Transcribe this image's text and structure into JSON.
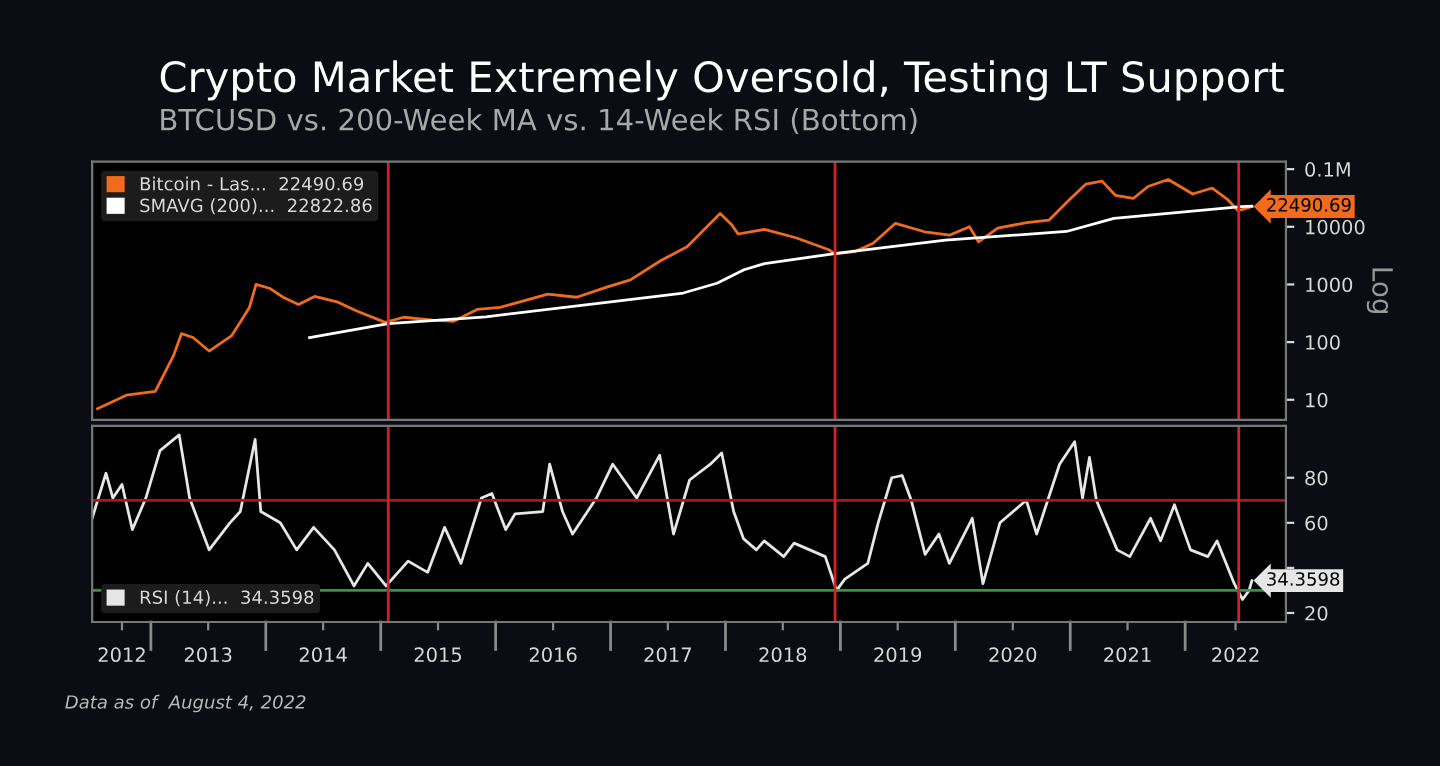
{
  "chart_data": [
    {
      "type": "line",
      "title": "Crypto Market Extremely Oversold, Testing LT Support",
      "subtitle": "BTCUSD vs. 200-Week MA vs. 14-Week RSI (Bottom)",
      "ylabel": "Log",
      "log": "y",
      "legend": "top left",
      "tick_labels": "y",
      "xlim": [
        "2012-06-28",
        "2022-11-17"
      ],
      "ylim": [
        4.5,
        135000
      ],
      "yticks": [
        10,
        100,
        1000,
        10000,
        {
          "value": 100000,
          "label": "0.1M"
        }
      ],
      "series": [
        {
          "name": "Bitcoin - Las...  22490.69",
          "color": "#f26b1d",
          "x": [
            "2012-07-15",
            "2012-10-15",
            "2013-01-15",
            "2013-03-15",
            "2013-04-08",
            "2013-05-15",
            "2013-07-05",
            "2013-09-15",
            "2013-11-10",
            "2013-12-01",
            "2014-01-15",
            "2014-02-25",
            "2014-04-15",
            "2014-06-05",
            "2014-08-15",
            "2014-10-15",
            "2015-01-15",
            "2015-03-15",
            "2015-06-15",
            "2015-08-20",
            "2015-11-05",
            "2016-01-15",
            "2016-06-15",
            "2016-09-15",
            "2016-12-20",
            "2017-03-05",
            "2017-06-10",
            "2017-09-01",
            "2017-12-15",
            "2018-01-20",
            "2018-02-10",
            "2018-05-05",
            "2018-08-15",
            "2018-11-25",
            "2018-12-15",
            "2019-02-15",
            "2019-04-15",
            "2019-06-25",
            "2019-09-25",
            "2019-12-15",
            "2020-02-15",
            "2020-03-15",
            "2020-05-15",
            "2020-08-15",
            "2020-10-25",
            "2020-12-25",
            "2021-02-20",
            "2021-04-12",
            "2021-05-25",
            "2021-07-20",
            "2021-09-05",
            "2021-11-08",
            "2022-01-25",
            "2022-03-28",
            "2022-05-15",
            "2022-06-18",
            "2022-08-01"
          ],
          "values": [
            7,
            12,
            14,
            60,
            140,
            120,
            70,
            130,
            400,
            1000,
            850,
            600,
            450,
            620,
            500,
            350,
            220,
            270,
            240,
            230,
            370,
            400,
            680,
            600,
            900,
            1200,
            2600,
            4500,
            17000,
            11000,
            7500,
            9000,
            6400,
            4000,
            3400,
            3700,
            5200,
            11500,
            8200,
            7200,
            10000,
            5500,
            9500,
            11800,
            13000,
            28000,
            55000,
            62000,
            35000,
            31000,
            50000,
            66000,
            37000,
            47000,
            30000,
            19000,
            22490.69
          ]
        },
        {
          "name": "SMAVG (200)...  22822.86",
          "color": "#ffffff",
          "x": [
            "2014-05-20",
            "2015-01-25",
            "2015-12-01",
            "2017-01-15",
            "2017-08-20",
            "2017-12-05",
            "2018-03-01",
            "2018-05-05",
            "2018-12-25",
            "2019-12-01",
            "2020-12-20",
            "2021-05-20",
            "2022-06-28",
            "2022-08-01"
          ],
          "values": [
            120,
            210,
            275,
            510,
            710,
            1050,
            1800,
            2300,
            3500,
            5900,
            8300,
            14000,
            22300,
            22822.86
          ]
        }
      ],
      "ref_lines": [
        {
          "axis": "x",
          "value": "2015-01-25",
          "color": "#d0202a"
        },
        {
          "axis": "x",
          "value": "2018-12-15",
          "color": "#d0202a"
        },
        {
          "axis": "x",
          "value": "2022-06-20",
          "color": "#d0202a"
        }
      ],
      "annotations": [
        {
          "text": "22490.69",
          "x": "2022-08-01",
          "y": 22490.69
        }
      ]
    },
    {
      "type": "line",
      "legend": "bottom left",
      "xlim": [
        "2012-06-28",
        "2022-11-17"
      ],
      "ylim": [
        16,
        103
      ],
      "yticks": [
        20,
        {
          "value": 40,
          "label": null
        },
        60,
        80
      ],
      "xticks": [
        {
          "value": "2012-10-01",
          "label": "2012"
        },
        {
          "value": "2013-07-02",
          "label": "2013"
        },
        {
          "value": "2014-07-02",
          "label": "2014"
        },
        {
          "value": "2015-07-02",
          "label": "2015"
        },
        {
          "value": "2016-07-02",
          "label": "2016"
        },
        {
          "value": "2017-07-02",
          "label": "2017"
        },
        {
          "value": "2018-07-02",
          "label": "2018"
        },
        {
          "value": "2019-07-02",
          "label": "2019"
        },
        {
          "value": "2020-07-02",
          "label": "2020"
        },
        {
          "value": "2021-07-02",
          "label": "2021"
        },
        {
          "value": "2022-06-10",
          "label": "2022"
        }
      ],
      "series": [
        {
          "name": "RSI (14)...  34.3598",
          "color": "#e6e6e6",
          "x": [
            "2012-06-28",
            "2012-08-11",
            "2012-09-02",
            "2012-10-01",
            "2012-11-03",
            "2012-12-16",
            "2013-01-30",
            "2013-04-01",
            "2013-05-04",
            "2013-07-05",
            "2013-09-09",
            "2013-10-12",
            "2013-11-28",
            "2013-12-16",
            "2014-02-16",
            "2014-04-09",
            "2014-06-02",
            "2014-08-07",
            "2014-10-08",
            "2014-11-21",
            "2015-01-18",
            "2015-03-29",
            "2015-05-30",
            "2015-07-23",
            "2015-09-13",
            "2015-11-17",
            "2015-12-20",
            "2016-02-02",
            "2016-03-03",
            "2016-05-30",
            "2016-06-21",
            "2016-08-01",
            "2016-09-02",
            "2016-11-17",
            "2017-01-08",
            "2017-03-25",
            "2017-06-06",
            "2017-07-20",
            "2017-09-09",
            "2017-11-14",
            "2017-12-20",
            "2018-01-27",
            "2018-02-27",
            "2018-04-09",
            "2018-05-04",
            "2018-07-05",
            "2018-08-07",
            "2018-11-14",
            "2018-12-20",
            "2019-01-15",
            "2019-03-29",
            "2019-05-01",
            "2019-06-13",
            "2019-07-16",
            "2019-08-14",
            "2019-09-27",
            "2019-11-10",
            "2019-12-13",
            "2020-02-24",
            "2020-03-29",
            "2020-05-22",
            "2020-08-14",
            "2020-09-16",
            "2020-11-28",
            "2021-01-15",
            "2021-02-09",
            "2021-03-03",
            "2021-03-25",
            "2021-05-30",
            "2021-07-09",
            "2021-09-13",
            "2021-10-15",
            "2021-11-28",
            "2022-01-18",
            "2022-03-14",
            "2022-04-12",
            "2022-06-06",
            "2022-07-02",
            "2022-07-23",
            "2022-08-01"
          ],
          "values": [
            62,
            82,
            71,
            77,
            57,
            71,
            92,
            99,
            71,
            48,
            60,
            65,
            97,
            65,
            60,
            48,
            58,
            48,
            32,
            42,
            32,
            43,
            38,
            58,
            42,
            71,
            73,
            57,
            64,
            65,
            86,
            65,
            55,
            71,
            86,
            71,
            90,
            55,
            79,
            86,
            91,
            65,
            53,
            48,
            52,
            45,
            51,
            45,
            30,
            35,
            42,
            60,
            80,
            81,
            70,
            46,
            55,
            42,
            62,
            33,
            60,
            70,
            55,
            86,
            96,
            71,
            89,
            70,
            48,
            45,
            62,
            52,
            68,
            48,
            45,
            52,
            33,
            26,
            30,
            34.3598
          ]
        }
      ],
      "ref_lines": [
        {
          "axis": "y",
          "value": 70,
          "color": "#b0141c"
        },
        {
          "axis": "y",
          "value": 30,
          "color": "#2e9a3a"
        },
        {
          "axis": "x",
          "value": "2015-01-25",
          "color": "#d0202a"
        },
        {
          "axis": "x",
          "value": "2018-12-15",
          "color": "#d0202a"
        },
        {
          "axis": "x",
          "value": "2022-06-20",
          "color": "#d0202a"
        }
      ],
      "annotations": [
        {
          "text": "34.3598",
          "x": "2022-08-01",
          "y": 34.3598
        },
        "Data as of  August 4, 2022"
      ]
    }
  ]
}
